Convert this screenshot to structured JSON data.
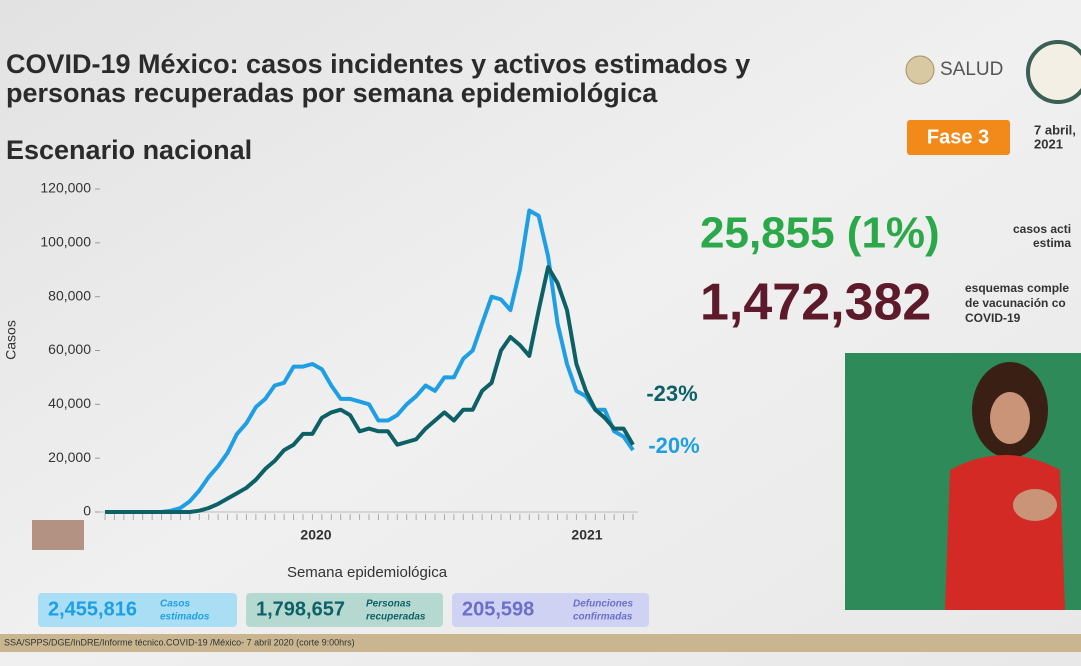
{
  "header": {
    "title_line1": "COVID-19 México: casos incidentes y activos estimados y",
    "title_line2": "personas recuperadas por semana epidemiológica",
    "subtitle": "Escenario nacional",
    "logo_text": "SALUD",
    "phase": "Fase 3",
    "date_line1": "7 abril,",
    "date_line2": "2021"
  },
  "stats": {
    "active_value": "25,855 (1%)",
    "active_label_line1": "casos acti",
    "active_label_line2": "estima",
    "vaccine_value": "1,472,382",
    "vaccine_label_line1": "esquemas comple",
    "vaccine_label_line2": "de vacunación co",
    "vaccine_label_line3": "COVID-19"
  },
  "chart_data": {
    "type": "line",
    "y_label": "Casos",
    "x_label": "Semana epidemiológica",
    "year_labels": [
      "2020",
      "2021"
    ],
    "annotations": [
      "-23%",
      "-20%"
    ],
    "categories": [
      null,
      null,
      null,
      null,
      null,
      null,
      null,
      null,
      null,
      null,
      null,
      null,
      null,
      null,
      null,
      null,
      null,
      null,
      null,
      null,
      null,
      null,
      null,
      null,
      null,
      null,
      null,
      null,
      null,
      null,
      null,
      null,
      null,
      null,
      null,
      null,
      null,
      null,
      null,
      null,
      null,
      null,
      null,
      null,
      null,
      null,
      null,
      null,
      null,
      null,
      null,
      null,
      null,
      null,
      null,
      null,
      null
    ],
    "ylim": [
      0,
      120000
    ],
    "yticks": [
      {
        "value": 0,
        "label": "0"
      },
      {
        "value": 20000,
        "label": "20,000"
      },
      {
        "value": 40000,
        "label": "40,000"
      },
      {
        "value": 60000,
        "label": "60,000"
      },
      {
        "value": 80000,
        "label": "80,000"
      },
      {
        "value": 100000,
        "label": "100,000"
      },
      {
        "value": 120000,
        "label": "120,000"
      }
    ],
    "series": [
      {
        "color": "#1f9fe3",
        "values": [
          0,
          0,
          0,
          0,
          0,
          0,
          0,
          500,
          1500,
          4000,
          8000,
          13000,
          17000,
          22000,
          29000,
          33000,
          39000,
          42000,
          47000,
          48000,
          54000,
          54000,
          55000,
          53000,
          47000,
          42000,
          42000,
          41000,
          40000,
          34000,
          34000,
          36000,
          40000,
          43000,
          47000,
          45000,
          50000,
          50000,
          57000,
          60000,
          70000,
          80000,
          79000,
          75000,
          90000,
          112000,
          110000,
          95000,
          70000,
          55000,
          45000,
          43000,
          38000,
          38000,
          30000,
          28000,
          23000
        ]
      },
      {
        "color": "#0d6166",
        "values": [
          0,
          0,
          0,
          0,
          0,
          0,
          0,
          0,
          0,
          0,
          500,
          1500,
          3000,
          5000,
          7000,
          9000,
          12000,
          16000,
          19000,
          23000,
          25000,
          29000,
          29000,
          35000,
          37000,
          38000,
          36000,
          30000,
          31000,
          30000,
          30000,
          25000,
          26000,
          27000,
          31000,
          34000,
          37000,
          34000,
          38000,
          38000,
          45000,
          48000,
          60000,
          65000,
          62000,
          58000,
          75000,
          91000,
          85000,
          75000,
          55000,
          45000,
          38000,
          35000,
          31000,
          31000,
          25000
        ]
      }
    ]
  },
  "summary": {
    "estimated_value": "2,455,816",
    "estimated_label_line1": "Casos",
    "estimated_label_line2": "estimados",
    "recovered_value": "1,798,657",
    "recovered_label_line1": "Personas",
    "recovered_label_line2": "recuperadas",
    "deaths_value": "205,598",
    "deaths_label_line1": "Defunciones",
    "deaths_label_line2": "confirmadas"
  },
  "footer": {
    "source": "SSA/SPPS/DGE/InDRE/Informe técnico.COVID-19 /México- 7 abril 2020 (corte 9:00hrs)"
  }
}
